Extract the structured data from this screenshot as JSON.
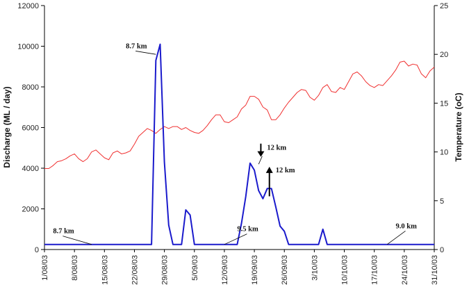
{
  "chart_data": {
    "type": "line",
    "xlabel": "",
    "ylabel": "Discharge (ML / day)",
    "y2label": "Temperature (oC)",
    "ylim": [
      0,
      12000
    ],
    "y2lim": [
      0,
      25
    ],
    "yticks": [
      0,
      2000,
      4000,
      6000,
      8000,
      10000,
      12000
    ],
    "y2ticks": [
      0,
      5,
      10,
      15,
      20,
      25
    ],
    "x_start": "2003-08-01",
    "x_end": "2003-10-31",
    "x_tick_labels": [
      "1/08/03",
      "8/08/03",
      "15/08/03",
      "22/08/03",
      "29/08/03",
      "5/09/03",
      "12/09/03",
      "19/09/03",
      "26/09/03",
      "3/10/03",
      "10/10/03",
      "17/10/03",
      "24/10/03",
      "31/10/03"
    ],
    "grid": false,
    "series": [
      {
        "axis": "left",
        "color": "#1a1acc",
        "points": [
          [
            "1/08/03",
            250
          ],
          [
            "2/08/03",
            250
          ],
          [
            "10/08/03",
            250
          ],
          [
            "20/08/03",
            250
          ],
          [
            "26/08/03",
            250
          ],
          [
            "27/08/03",
            9300
          ],
          [
            "28/08/03",
            10100
          ],
          [
            "29/08/03",
            4300
          ],
          [
            "30/08/03",
            1200
          ],
          [
            "31/08/03",
            250
          ],
          [
            "1/09/03",
            250
          ],
          [
            "2/09/03",
            250
          ],
          [
            "3/09/03",
            1950
          ],
          [
            "4/09/03",
            1700
          ],
          [
            "5/09/03",
            250
          ],
          [
            "8/09/03",
            250
          ],
          [
            "11/09/03",
            250
          ],
          [
            "14/09/03",
            250
          ],
          [
            "15/09/03",
            250
          ],
          [
            "16/09/03",
            1300
          ],
          [
            "17/09/03",
            2600
          ],
          [
            "18/09/03",
            4250
          ],
          [
            "19/09/03",
            3900
          ],
          [
            "20/09/03",
            2900
          ],
          [
            "21/09/03",
            2500
          ],
          [
            "22/09/03",
            3000
          ],
          [
            "23/09/03",
            3000
          ],
          [
            "24/09/03",
            2100
          ],
          [
            "25/09/03",
            1150
          ],
          [
            "26/09/03",
            900
          ],
          [
            "27/09/03",
            250
          ],
          [
            "30/09/03",
            250
          ],
          [
            "3/10/03",
            250
          ],
          [
            "4/10/03",
            250
          ],
          [
            "5/10/03",
            1000
          ],
          [
            "6/10/03",
            250
          ],
          [
            "10/10/03",
            250
          ],
          [
            "20/10/03",
            250
          ],
          [
            "25/10/03",
            250
          ],
          [
            "31/10/03",
            250
          ]
        ]
      },
      {
        "axis": "right",
        "color": "#f03030",
        "points": [
          [
            "1/08/03",
            8.3
          ],
          [
            "2/08/03",
            8.3
          ],
          [
            "3/08/03",
            8.6
          ],
          [
            "4/08/03",
            9.0
          ],
          [
            "5/08/03",
            9.1
          ],
          [
            "6/08/03",
            9.3
          ],
          [
            "7/08/03",
            9.6
          ],
          [
            "8/08/03",
            9.8
          ],
          [
            "9/08/03",
            9.3
          ],
          [
            "10/08/03",
            9.0
          ],
          [
            "11/08/03",
            9.3
          ],
          [
            "12/08/03",
            10.0
          ],
          [
            "13/08/03",
            10.2
          ],
          [
            "14/08/03",
            9.8
          ],
          [
            "15/08/03",
            9.4
          ],
          [
            "16/08/03",
            9.2
          ],
          [
            "17/08/03",
            9.9
          ],
          [
            "18/08/03",
            10.1
          ],
          [
            "19/08/03",
            9.8
          ],
          [
            "20/08/03",
            9.9
          ],
          [
            "21/08/03",
            10.1
          ],
          [
            "22/08/03",
            10.8
          ],
          [
            "23/08/03",
            11.6
          ],
          [
            "24/08/03",
            12.0
          ],
          [
            "25/08/03",
            12.4
          ],
          [
            "26/08/03",
            12.2
          ],
          [
            "27/08/03",
            11.9
          ],
          [
            "28/08/03",
            12.3
          ],
          [
            "29/08/03",
            12.6
          ],
          [
            "30/08/03",
            12.4
          ],
          [
            "31/08/03",
            12.6
          ],
          [
            "1/09/03",
            12.6
          ],
          [
            "2/09/03",
            12.3
          ],
          [
            "3/09/03",
            12.5
          ],
          [
            "4/09/03",
            12.2
          ],
          [
            "5/09/03",
            12.0
          ],
          [
            "6/09/03",
            11.9
          ],
          [
            "7/09/03",
            12.2
          ],
          [
            "8/09/03",
            12.7
          ],
          [
            "9/09/03",
            13.3
          ],
          [
            "10/09/03",
            13.8
          ],
          [
            "11/09/03",
            13.8
          ],
          [
            "12/09/03",
            13.1
          ],
          [
            "13/09/03",
            13.0
          ],
          [
            "14/09/03",
            13.3
          ],
          [
            "15/09/03",
            13.6
          ],
          [
            "16/09/03",
            14.4
          ],
          [
            "17/09/03",
            14.8
          ],
          [
            "18/09/03",
            15.7
          ],
          [
            "19/09/03",
            15.7
          ],
          [
            "20/09/03",
            15.4
          ],
          [
            "21/09/03",
            14.6
          ],
          [
            "22/09/03",
            14.3
          ],
          [
            "23/09/03",
            13.3
          ],
          [
            "24/09/03",
            13.3
          ],
          [
            "25/09/03",
            13.8
          ],
          [
            "26/09/03",
            14.5
          ],
          [
            "27/09/03",
            15.1
          ],
          [
            "28/09/03",
            15.6
          ],
          [
            "29/09/03",
            16.1
          ],
          [
            "30/09/03",
            16.4
          ],
          [
            "1/10/03",
            16.3
          ],
          [
            "2/10/03",
            15.6
          ],
          [
            "3/10/03",
            15.3
          ],
          [
            "4/10/03",
            15.8
          ],
          [
            "5/10/03",
            16.6
          ],
          [
            "6/10/03",
            16.9
          ],
          [
            "7/10/03",
            16.2
          ],
          [
            "8/10/03",
            16.1
          ],
          [
            "9/10/03",
            16.6
          ],
          [
            "10/10/03",
            16.4
          ],
          [
            "11/10/03",
            17.2
          ],
          [
            "12/10/03",
            18.0
          ],
          [
            "13/10/03",
            18.2
          ],
          [
            "14/10/03",
            17.8
          ],
          [
            "15/10/03",
            17.2
          ],
          [
            "16/10/03",
            16.8
          ],
          [
            "17/10/03",
            16.6
          ],
          [
            "18/10/03",
            16.9
          ],
          [
            "19/10/03",
            16.8
          ],
          [
            "20/10/03",
            17.3
          ],
          [
            "21/10/03",
            17.8
          ],
          [
            "22/10/03",
            18.4
          ],
          [
            "23/10/03",
            19.2
          ],
          [
            "24/10/03",
            19.3
          ],
          [
            "25/10/03",
            18.8
          ],
          [
            "26/10/03",
            19.0
          ],
          [
            "27/10/03",
            18.9
          ],
          [
            "28/10/03",
            18.0
          ],
          [
            "29/10/03",
            17.6
          ],
          [
            "30/10/03",
            18.3
          ],
          [
            "31/10/03",
            18.7
          ]
        ]
      }
    ],
    "annotations": [
      {
        "text": "8.7 km",
        "x": "3/08/03",
        "y": 800,
        "target": [
          "12/08/03",
          250
        ]
      },
      {
        "text": "8.7 km",
        "x": "20/08/03",
        "y": 9900,
        "target": [
          "27/08/03",
          9600
        ]
      },
      {
        "text": "9.5 km",
        "x": "15/09/03",
        "y": 900,
        "target": [
          "12/09/03",
          250
        ]
      },
      {
        "text": "12 km",
        "x": "21/09/03",
        "y": 4900,
        "marker": "arrow-down",
        "target": [
          "20/09/03",
          4200
        ]
      },
      {
        "text": "12 km",
        "x": "23/09/03",
        "y": 3800,
        "marker": "arrow-up",
        "target": [
          "22/09/03",
          2550
        ]
      },
      {
        "text": "9.0 km",
        "x": "22/10/03",
        "y": 1050,
        "target": [
          "20/10/03",
          250
        ]
      }
    ]
  }
}
